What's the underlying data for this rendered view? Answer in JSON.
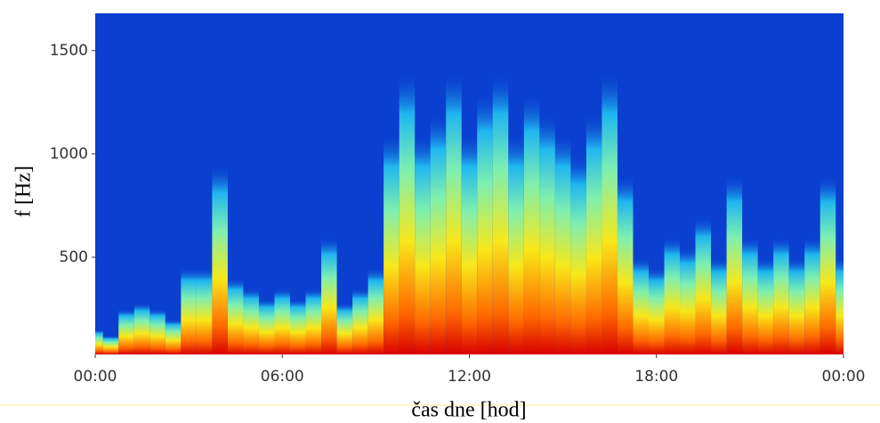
{
  "chart_data": {
    "type": "spectrogram",
    "xlabel": "čas dne [hod]",
    "ylabel": "f [Hz]",
    "xlim": [
      0,
      24
    ],
    "ylim": [
      30,
      1680
    ],
    "xticks": [
      {
        "value": 0,
        "label": "00:00"
      },
      {
        "value": 6,
        "label": "06:00"
      },
      {
        "value": 12,
        "label": "12:00"
      },
      {
        "value": 18,
        "label": "18:00"
      },
      {
        "value": 24,
        "label": "00:00"
      }
    ],
    "yticks": [
      500,
      1000,
      1500
    ],
    "background": "#0a3fcf",
    "x": [
      0,
      0.5,
      1,
      1.5,
      2,
      2.5,
      3,
      3.5,
      4,
      4.5,
      5,
      5.5,
      6,
      6.5,
      7,
      7.5,
      8,
      8.5,
      9,
      9.5,
      10,
      10.5,
      11,
      11.5,
      12,
      12.5,
      13,
      13.5,
      14,
      14.5,
      15,
      15.5,
      16,
      16.5,
      17,
      17.5,
      18,
      18.5,
      19,
      19.5,
      20,
      20.5,
      21,
      21.5,
      22,
      22.5,
      23,
      23.5,
      24
    ],
    "values": [
      150,
      120,
      250,
      280,
      250,
      200,
      450,
      450,
      950,
      400,
      350,
      300,
      350,
      300,
      350,
      600,
      280,
      350,
      450,
      1100,
      1400,
      1100,
      1200,
      1400,
      1100,
      1300,
      1400,
      1100,
      1300,
      1200,
      1100,
      1000,
      1200,
      1400,
      900,
      500,
      450,
      600,
      550,
      700,
      500,
      900,
      600,
      500,
      600,
      500,
      600,
      900,
      500
    ]
  }
}
